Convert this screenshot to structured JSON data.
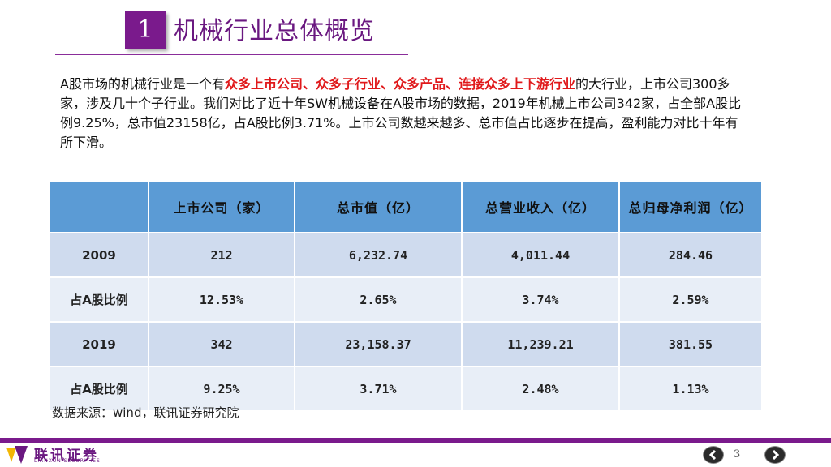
{
  "header": {
    "section_number": "1",
    "title": "机械行业总体概览"
  },
  "intro": {
    "p1": "A股市场的机械行业是一个有",
    "highlight": "众多上市公司、众多子行业、众多产品、连接众多上下游行业",
    "p2": "的大行业，上市公司300多家，涉及几十个子行业。我们对比了近十年SW机械设备在A股市场的数据，2019年机械上市公司342家，占全部A股比例9.25%，总市值23158亿，占A股比例3.71%。上市公司数越来越多、总市值占比逐步在提高，盈利能力对比十年有所下滑。"
  },
  "table": {
    "headers": [
      "",
      "上市公司（家）",
      "总市值（亿）",
      "总营业收入（亿）",
      "总归母净利润（亿）"
    ],
    "rows": [
      [
        "2009",
        "212",
        "6,232.74",
        "4,011.44",
        "284.46"
      ],
      [
        "占A股比例",
        "12.53%",
        "2.65%",
        "3.74%",
        "2.59%"
      ],
      [
        "2019",
        "342",
        "23,158.37",
        "11,239.21",
        "381.55"
      ],
      [
        "占A股比例",
        "9.25%",
        "3.71%",
        "2.48%",
        "1.13%"
      ]
    ]
  },
  "source": "数据来源：wind，联讯证券研究院",
  "footer": {
    "logo_cn": "联讯证券",
    "logo_en": "LIANXUN SECURITIES",
    "page_number": "3",
    "prev_icon": "chevron-left-icon",
    "next_icon": "chevron-right-icon"
  },
  "colors": {
    "brand_purple": "#7a1a8c",
    "highlight_red": "#e0191b",
    "table_header_blue": "#5b9bd5",
    "row_odd": "#cfdbee",
    "row_even": "#e8eef7"
  }
}
